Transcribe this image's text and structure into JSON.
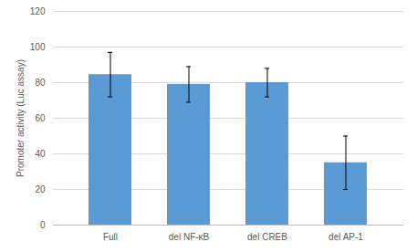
{
  "chart_data": {
    "type": "bar",
    "categories": [
      "Full",
      "del NF-κB",
      "del CREB",
      "del AP-1"
    ],
    "values": [
      84.5,
      79,
      80,
      35
    ],
    "errors": [
      12.5,
      10,
      8,
      15
    ],
    "color": "#5b9bd5",
    "ylabel": "Promoter activity (Luc assay)",
    "ylim": [
      0,
      120
    ],
    "yticks": [
      0,
      20,
      40,
      60,
      80,
      100,
      120
    ],
    "grid": true
  }
}
